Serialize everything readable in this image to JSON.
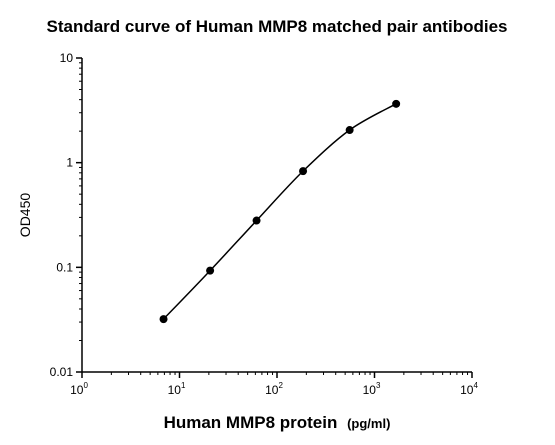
{
  "chart_data": {
    "type": "scatter",
    "title": "Standard curve of Human MMP8 matched pair antibodies",
    "xlabel": "Human MMP8 protein",
    "xlabel_unit": "(pg/ml)",
    "ylabel": "OD450",
    "x_scale": "log",
    "y_scale": "log",
    "xlim": [
      1,
      10000
    ],
    "ylim": [
      0.01,
      10
    ],
    "x_ticks": [
      {
        "value": 1,
        "base": "10",
        "exp": "0"
      },
      {
        "value": 10,
        "base": "10",
        "exp": "1"
      },
      {
        "value": 100,
        "base": "10",
        "exp": "2"
      },
      {
        "value": 1000,
        "base": "10",
        "exp": "3"
      },
      {
        "value": 10000,
        "base": "10",
        "exp": "4"
      }
    ],
    "y_ticks": [
      {
        "value": 0.01,
        "label": "0.01"
      },
      {
        "value": 0.1,
        "label": "0.1"
      },
      {
        "value": 1,
        "label": "1"
      },
      {
        "value": 10,
        "label": "10"
      }
    ],
    "grid": false,
    "legend": "none",
    "series": [
      {
        "x": [
          6.86,
          20.6,
          61.7,
          185,
          556,
          1667
        ],
        "y": [
          0.032,
          0.093,
          0.28,
          0.83,
          2.05,
          3.65
        ]
      }
    ],
    "marker_color": "#000000",
    "line_color": "#000000"
  }
}
